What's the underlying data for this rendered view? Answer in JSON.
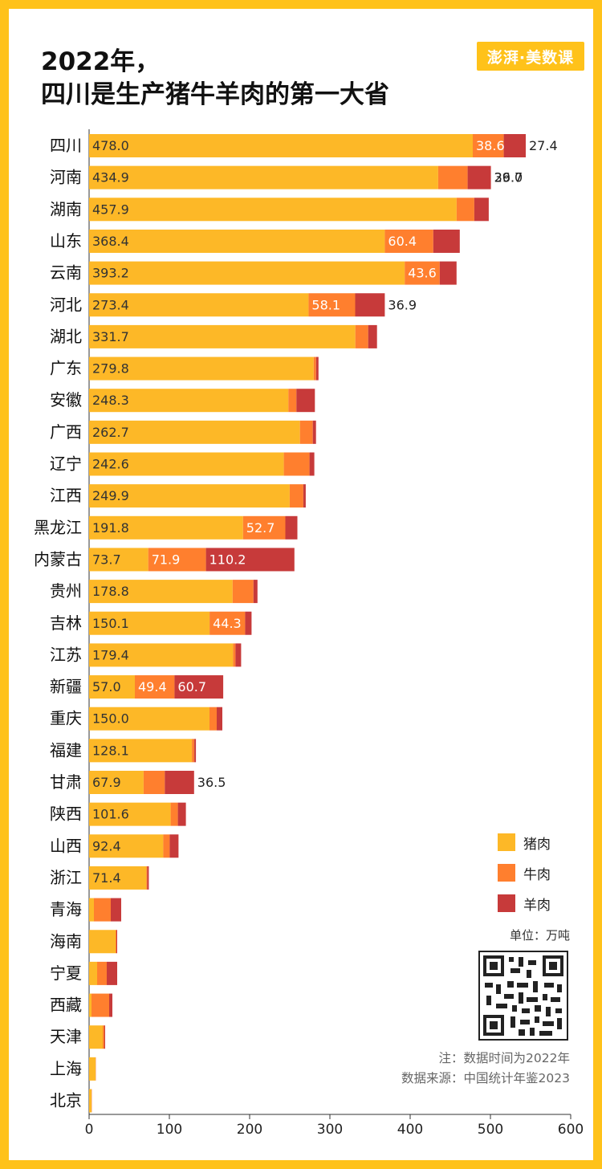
{
  "brand": {
    "logo_text": "澎湃·美数课",
    "accent": "#FFC21A"
  },
  "title_lines": [
    "2022年，",
    "四川是生产猪牛羊肉的第一大省"
  ],
  "legend": [
    {
      "label": "猪肉",
      "color": "#FDB827"
    },
    {
      "label": "牛肉",
      "color": "#FF7F2E"
    },
    {
      "label": "羊肉",
      "color": "#C73A3A"
    }
  ],
  "unit": "单位：万吨",
  "notes": [
    "注：数据时间为2022年",
    "数据来源：中国统计年鉴2023"
  ],
  "chart_data": {
    "type": "bar",
    "orientation": "horizontal",
    "stacked": true,
    "categories": [
      "四川",
      "河南",
      "湖南",
      "山东",
      "云南",
      "河北",
      "湖北",
      "广东",
      "安徽",
      "广西",
      "辽宁",
      "江西",
      "黑龙江",
      "内蒙古",
      "贵州",
      "吉林",
      "江苏",
      "新疆",
      "重庆",
      "福建",
      "甘肃",
      "陕西",
      "山西",
      "浙江",
      "青海",
      "海南",
      "宁夏",
      "西藏",
      "天津",
      "上海",
      "北京"
    ],
    "series": [
      {
        "name": "猪肉",
        "color": "#FDB827",
        "values": [
          478.0,
          434.9,
          457.9,
          368.4,
          393.2,
          273.4,
          331.7,
          279.8,
          248.3,
          262.7,
          242.6,
          249.9,
          191.8,
          73.7,
          178.8,
          150.1,
          179.4,
          57.0,
          150.0,
          128.1,
          67.9,
          101.6,
          92.4,
          71.4,
          6,
          33,
          10,
          3,
          17,
          8,
          3
        ]
      },
      {
        "name": "牛肉",
        "color": "#FF7F2E",
        "values": [
          38.6,
          36.7,
          22,
          60.4,
          43.6,
          58.1,
          16,
          3,
          10,
          16,
          32,
          17,
          52.7,
          71.9,
          26,
          44.3,
          3,
          49.4,
          9,
          3,
          26.4,
          9,
          8,
          1,
          21,
          1,
          12,
          22,
          2,
          0.3,
          0.3
        ]
      },
      {
        "name": "羊肉",
        "color": "#C73A3A",
        "values": [
          27.4,
          29.0,
          18,
          33,
          21,
          36.9,
          11,
          3,
          23,
          4,
          6,
          3,
          15,
          110.2,
          5,
          8,
          7,
          60.7,
          7,
          2,
          36.5,
          10,
          11,
          2,
          13,
          1,
          13,
          4,
          1,
          0.1,
          0.1
        ]
      }
    ],
    "labels": [
      [
        "478.0",
        "38.6",
        "27.4"
      ],
      [
        "434.9",
        "36.7",
        "29.0"
      ],
      [
        "457.9",
        "",
        ""
      ],
      [
        "368.4",
        "60.4",
        ""
      ],
      [
        "393.2",
        "43.6",
        ""
      ],
      [
        "273.4",
        "58.1",
        "36.9"
      ],
      [
        "331.7",
        "",
        ""
      ],
      [
        "279.8",
        "",
        ""
      ],
      [
        "248.3",
        "",
        ""
      ],
      [
        "262.7",
        "",
        ""
      ],
      [
        "242.6",
        "",
        ""
      ],
      [
        "249.9",
        "",
        ""
      ],
      [
        "191.8",
        "52.7",
        ""
      ],
      [
        "73.7",
        "71.9",
        "110.2"
      ],
      [
        "178.8",
        "",
        ""
      ],
      [
        "150.1",
        "44.3",
        ""
      ],
      [
        "179.4",
        "",
        ""
      ],
      [
        "57.0",
        "49.4",
        "60.7"
      ],
      [
        "150.0",
        "",
        ""
      ],
      [
        "128.1",
        "",
        ""
      ],
      [
        "67.9",
        "",
        "36.5"
      ],
      [
        "101.6",
        "",
        ""
      ],
      [
        "92.4",
        "",
        ""
      ],
      [
        "71.4",
        "",
        ""
      ],
      [
        "",
        "",
        ""
      ],
      [
        "",
        "",
        ""
      ],
      [
        "",
        "",
        ""
      ],
      [
        "",
        "",
        ""
      ],
      [
        "",
        "",
        ""
      ],
      [
        "",
        "",
        ""
      ],
      [
        "",
        "",
        ""
      ]
    ],
    "x_ticks": [
      0,
      100,
      200,
      300,
      400,
      500,
      600
    ],
    "xlim": [
      0,
      600
    ]
  }
}
